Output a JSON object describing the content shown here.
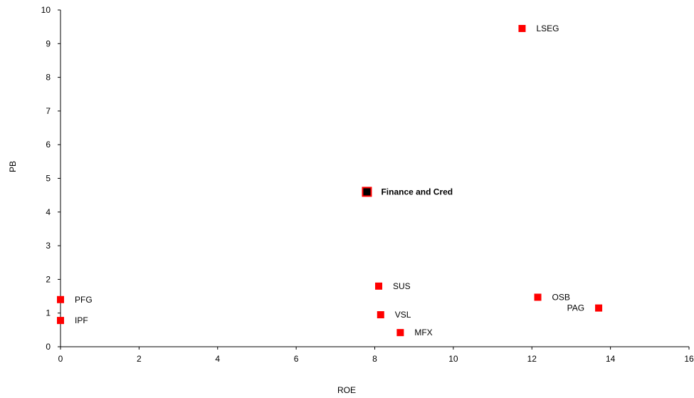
{
  "chart_data": {
    "type": "scatter",
    "title": "",
    "xlabel": "ROE",
    "ylabel": "PB",
    "xlim": [
      0,
      16
    ],
    "ylim": [
      0,
      10
    ],
    "x_ticks": [
      0,
      2,
      4,
      6,
      8,
      10,
      12,
      14,
      16
    ],
    "y_ticks": [
      0,
      1,
      2,
      3,
      4,
      5,
      6,
      7,
      8,
      9,
      10
    ],
    "grid": false,
    "marker_color": "#ff0000",
    "highlight_fill": "#000000",
    "highlight_border": "#ff0000",
    "points": [
      {
        "label": "LSEG",
        "x": 11.75,
        "y": 9.45,
        "highlight": false,
        "label_side": "right"
      },
      {
        "label": "Finance and Cred",
        "x": 7.8,
        "y": 4.6,
        "highlight": true,
        "label_side": "right"
      },
      {
        "label": "SUS",
        "x": 8.1,
        "y": 1.8,
        "highlight": false,
        "label_side": "right"
      },
      {
        "label": "OSB",
        "x": 12.15,
        "y": 1.47,
        "highlight": false,
        "label_side": "right"
      },
      {
        "label": "PAG",
        "x": 13.7,
        "y": 1.15,
        "highlight": false,
        "label_side": "left"
      },
      {
        "label": "PFG",
        "x": 0.0,
        "y": 1.4,
        "highlight": false,
        "label_side": "right"
      },
      {
        "label": "VSL",
        "x": 8.15,
        "y": 0.95,
        "highlight": false,
        "label_side": "right"
      },
      {
        "label": "IPF",
        "x": 0.0,
        "y": 0.78,
        "highlight": false,
        "label_side": "right"
      },
      {
        "label": "MFX",
        "x": 8.65,
        "y": 0.42,
        "highlight": false,
        "label_side": "right"
      }
    ]
  }
}
